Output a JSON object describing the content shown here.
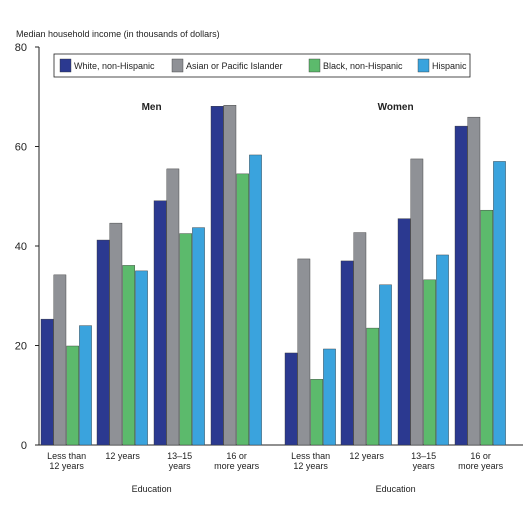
{
  "chart_data": {
    "type": "bar",
    "ylabel": "Median household income (in thousands of dollars)",
    "ylim": [
      0,
      80
    ],
    "yticks": [
      0,
      20,
      40,
      60,
      80
    ],
    "legend_position": "top",
    "grid": false,
    "series_names": [
      "White, non-Hispanic",
      "Asian or Pacific Islander",
      "Black, non-Hispanic",
      "Hispanic"
    ],
    "colors": [
      "#2b3990",
      "#8f9196",
      "#5cba6c",
      "#3aa3dd"
    ],
    "panels": [
      {
        "title": "Men",
        "xlabel": "Education",
        "categories": [
          "Less than 12 years",
          "12 years",
          "13–15 years",
          "16 or more years"
        ],
        "series": [
          {
            "name": "White, non-Hispanic",
            "values": [
              25.3,
              41.2,
              49.1,
              68.1
            ]
          },
          {
            "name": "Asian or Pacific Islander",
            "values": [
              34.2,
              44.6,
              55.5,
              68.3
            ]
          },
          {
            "name": "Black, non-Hispanic",
            "values": [
              19.9,
              36.1,
              42.5,
              54.5
            ]
          },
          {
            "name": "Hispanic",
            "values": [
              24.0,
              35.0,
              43.7,
              58.3
            ]
          }
        ]
      },
      {
        "title": "Women",
        "xlabel": "Education",
        "categories": [
          "Less than 12 years",
          "12 years",
          "13–15 years",
          "16 or more years"
        ],
        "series": [
          {
            "name": "White, non-Hispanic",
            "values": [
              18.5,
              37.0,
              45.5,
              64.1
            ]
          },
          {
            "name": "Asian or Pacific Islander",
            "values": [
              37.4,
              42.7,
              57.5,
              65.9
            ]
          },
          {
            "name": "Black, non-Hispanic",
            "values": [
              13.2,
              23.5,
              33.2,
              47.2
            ]
          },
          {
            "name": "Hispanic",
            "values": [
              19.3,
              32.2,
              38.2,
              57.0
            ]
          }
        ]
      }
    ]
  }
}
